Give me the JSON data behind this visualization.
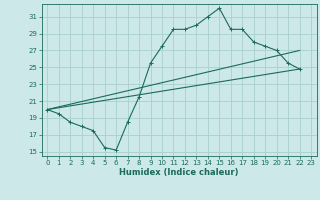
{
  "title": "",
  "xlabel": "Humidex (Indice chaleur)",
  "ylabel": "",
  "background_color": "#cce8e8",
  "grid_color": "#aacfcf",
  "line_color": "#1a6b5a",
  "xlim": [
    -0.5,
    23.5
  ],
  "ylim": [
    14.5,
    32.5
  ],
  "yticks": [
    15,
    17,
    19,
    21,
    23,
    25,
    27,
    29,
    31
  ],
  "xticks": [
    0,
    1,
    2,
    3,
    4,
    5,
    6,
    7,
    8,
    9,
    10,
    11,
    12,
    13,
    14,
    15,
    16,
    17,
    18,
    19,
    20,
    21,
    22,
    23
  ],
  "zigzag_x": [
    0,
    1,
    2,
    3,
    4,
    5,
    6,
    7,
    8,
    9,
    10,
    11,
    12,
    13,
    14,
    15,
    16,
    17,
    18,
    19,
    20,
    21,
    22
  ],
  "zigzag_y": [
    20.0,
    19.5,
    18.5,
    18.0,
    17.5,
    15.5,
    15.2,
    18.5,
    21.5,
    25.5,
    27.5,
    29.5,
    29.5,
    30.0,
    31.0,
    32.0,
    29.5,
    29.5,
    28.0,
    27.5,
    27.0,
    25.5,
    24.8
  ],
  "line1_x": [
    0,
    22
  ],
  "line1_y": [
    20.0,
    27.0
  ],
  "line2_x": [
    0,
    22
  ],
  "line2_y": [
    20.0,
    24.8
  ]
}
